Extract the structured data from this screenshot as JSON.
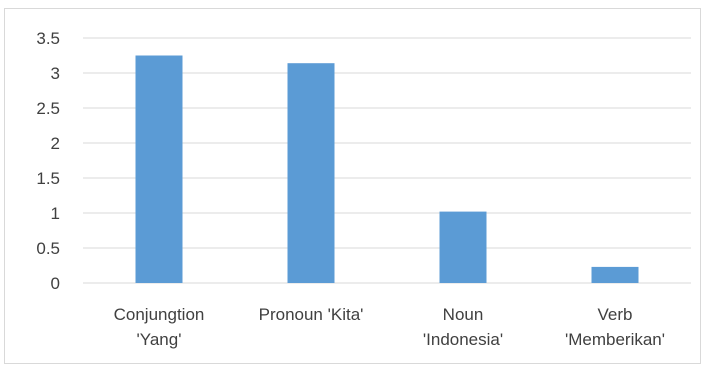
{
  "chart_data": {
    "type": "bar",
    "title": "",
    "xlabel": "",
    "ylabel": "",
    "categories": [
      [
        "Conjungtion",
        "'Yang'"
      ],
      [
        "Pronoun 'Kita'"
      ],
      [
        "Noun",
        "'Indonesia'"
      ],
      [
        "Verb",
        "'Memberikan'"
      ]
    ],
    "values": [
      3.25,
      3.14,
      1.02,
      0.23
    ],
    "ylim": [
      0,
      3.5
    ],
    "yticks": [
      "0",
      "0.5",
      "1",
      "1.5",
      "2",
      "2.5",
      "3",
      "3.5"
    ],
    "grid": true,
    "legend": "none",
    "bar_color": "#5b9bd5",
    "grid_color": "#d9d9d9"
  }
}
